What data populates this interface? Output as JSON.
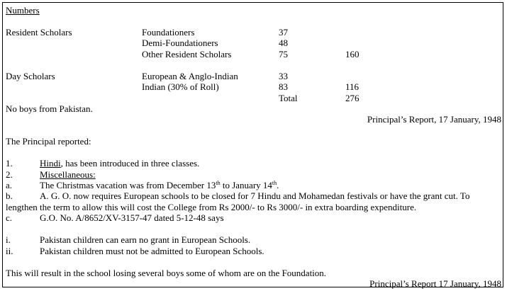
{
  "numbers_heading": "Numbers",
  "resident": {
    "label": "Resident Scholars",
    "rows": [
      {
        "category": "Foundationers",
        "count": "37",
        "subtotal": ""
      },
      {
        "category": "Demi-Foundationers",
        "count": "48",
        "subtotal": ""
      },
      {
        "category": "Other Resident Scholars",
        "count": "75",
        "subtotal": "160"
      }
    ]
  },
  "day": {
    "label": "Day Scholars",
    "rows": [
      {
        "category": "European & Anglo-Indian",
        "count": "33",
        "subtotal": ""
      },
      {
        "category": "Indian (30% of Roll)",
        "count": "83",
        "subtotal": "116"
      }
    ]
  },
  "total_label": "Total",
  "total_value": "276",
  "no_boys": "No boys from Pakistan.",
  "citation_1": "Principal’s Report, 17 January, 1948",
  "reported_intro": "The Principal reported:",
  "item1": {
    "num": "1.",
    "underlined": "Hindi",
    "rest": ", has been introduced in three classes."
  },
  "item2": {
    "num": "2.",
    "underlined": "Miscellaneous:"
  },
  "item_a": {
    "num": "a.",
    "text1": "The Christmas vacation was from December 13",
    "sup1": "th",
    "text2": " to January 14",
    "sup2": "th",
    "text3": "."
  },
  "item_b": {
    "num": "b.",
    "line1": "A. G. O. now requires European schools to be closed for 7 Hindu and Mohamedan festivals or have the grant cut. To",
    "line2": "lengthen the term to allow this will cost the College from Rs 2000/- to Rs 3000/- in extra boarding expenditure."
  },
  "item_c": {
    "num": "c.",
    "text": "G.O. No. A/8652/XV-3157-47 dated 5-12-48 says"
  },
  "item_i": {
    "num": "i.",
    "text": "Pakistan children can earn no grant in European Schools."
  },
  "item_ii": {
    "num": "ii.",
    "text": "Pakistan children must not be admitted to European Schools."
  },
  "conclusion": "This will result in the school losing several boys some of whom are on the Foundation.",
  "citation_2": "Principal’s Report 17 January, 1948"
}
